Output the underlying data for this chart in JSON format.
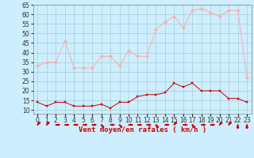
{
  "x": [
    0,
    1,
    2,
    3,
    4,
    5,
    6,
    7,
    8,
    9,
    10,
    11,
    12,
    13,
    14,
    15,
    16,
    17,
    18,
    19,
    20,
    21,
    22,
    23
  ],
  "wind_avg": [
    14,
    12,
    14,
    14,
    12,
    12,
    12,
    13,
    11,
    14,
    14,
    17,
    18,
    18,
    19,
    24,
    22,
    24,
    20,
    20,
    20,
    16,
    16,
    14
  ],
  "wind_gust": [
    33,
    35,
    35,
    46,
    32,
    32,
    32,
    38,
    38,
    33,
    41,
    38,
    38,
    52,
    56,
    59,
    53,
    62,
    63,
    61,
    59,
    62,
    62,
    27
  ],
  "bg_color": "#cceeff",
  "grid_color": "#aacccc",
  "line_color_avg": "#cc0000",
  "line_color_gust": "#ffaaaa",
  "marker_color_avg": "#cc0000",
  "marker_color_gust": "#ffaaaa",
  "xlabel": "Vent moyen/en rafales ( km/h )",
  "xlabel_color": "#cc0000",
  "ylim_min": 8,
  "ylim_max": 65,
  "yticks": [
    10,
    15,
    20,
    25,
    30,
    35,
    40,
    45,
    50,
    55,
    60,
    65
  ],
  "tick_fontsize": 5.5,
  "xlabel_fontsize": 6.5
}
